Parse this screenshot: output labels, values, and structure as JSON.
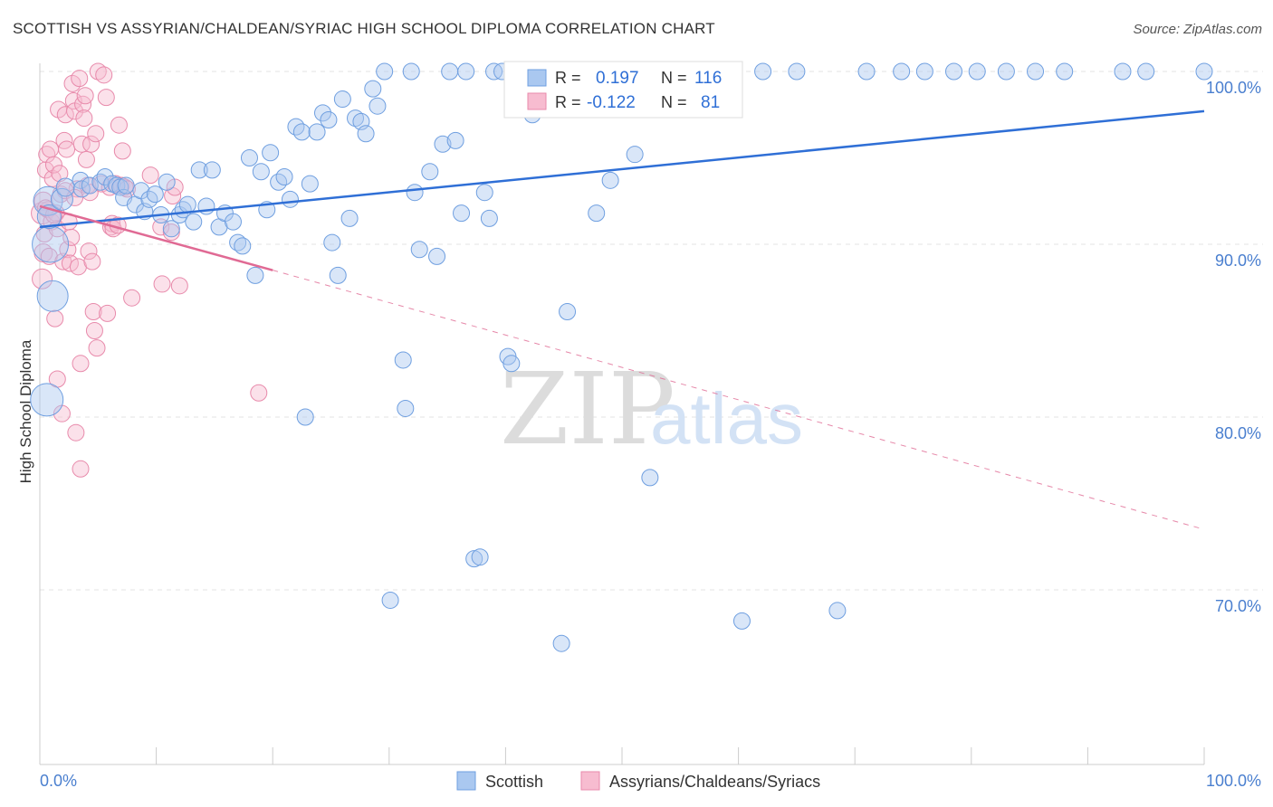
{
  "header": {
    "title": "SCOTTISH VS ASSYRIAN/CHALDEAN/SYRIAC HIGH SCHOOL DIPLOMA CORRELATION CHART",
    "source": "Source: ZipAtlas.com"
  },
  "watermark": {
    "zip": "ZIP",
    "atlas": "atlas"
  },
  "colors": {
    "blue_fill": "#aac8f0",
    "blue_stroke": "#6f9fe0",
    "blue_line": "#2f6fd6",
    "pink_fill": "#f7bcd0",
    "pink_stroke": "#e88aab",
    "pink_line": "#e06a94",
    "tick_label": "#4a7fcf",
    "grid": "#e3e3e3"
  },
  "legend_box": {
    "rows": [
      {
        "r_label": "R =",
        "r_value": "0.197",
        "n_label": "N =",
        "n_value": "116"
      },
      {
        "r_label": "R =",
        "r_value": "-0.122",
        "n_label": "N =",
        "n_value": "81"
      }
    ]
  },
  "bottom_legend": [
    "Scottish",
    "Assyrians/Chaldeans/Syriacs"
  ],
  "chart_data": {
    "type": "scatter",
    "title": "SCOTTISH VS ASSYRIAN/CHALDEAN/SYRIAC HIGH SCHOOL DIPLOMA CORRELATION CHART",
    "xlabel": "",
    "ylabel": "High School Diploma",
    "xlim": [
      0,
      100
    ],
    "ylim": [
      60,
      101.5
    ],
    "x_tick_labels": [
      "0.0%",
      "100.0%"
    ],
    "y_ticks": [
      70,
      80,
      90,
      100
    ],
    "y_tick_labels": [
      "70.0%",
      "80.0%",
      "90.0%",
      "100.0%"
    ],
    "grid": true,
    "legend_position": "top-center",
    "series": [
      {
        "name": "Scottish",
        "R": 0.197,
        "N": 116,
        "trend": {
          "x": [
            0,
            100
          ],
          "y": [
            91.0,
            97.7
          ],
          "style": "solid"
        },
        "points": [
          [
            0.7,
            92.5,
            16
          ],
          [
            0.9,
            90.0,
            20
          ],
          [
            1.1,
            87.0,
            17
          ],
          [
            0.6,
            81.0,
            18
          ],
          [
            0.8,
            91.6,
            13
          ],
          [
            1.9,
            92.6,
            12
          ],
          [
            2.2,
            93.3,
            10
          ],
          [
            3.5,
            93.7,
            9
          ],
          [
            3.6,
            93.2,
            9
          ],
          [
            4.3,
            93.4,
            9
          ],
          [
            5.2,
            93.6,
            9
          ],
          [
            5.6,
            93.9,
            9
          ],
          [
            6.2,
            93.5,
            9
          ],
          [
            6.6,
            93.4,
            9
          ],
          [
            6.9,
            93.3,
            9
          ],
          [
            7.2,
            92.7,
            9
          ],
          [
            7.4,
            93.4,
            9
          ],
          [
            8.2,
            92.3,
            9
          ],
          [
            8.7,
            93.1,
            9
          ],
          [
            9.0,
            91.9,
            9
          ],
          [
            9.4,
            92.6,
            9
          ],
          [
            9.9,
            92.9,
            9
          ],
          [
            10.4,
            91.7,
            9
          ],
          [
            10.9,
            93.6,
            9
          ],
          [
            11.3,
            90.9,
            9
          ],
          [
            12.0,
            91.7,
            9
          ],
          [
            12.3,
            92.0,
            9
          ],
          [
            12.7,
            92.3,
            9
          ],
          [
            13.2,
            91.3,
            9
          ],
          [
            13.7,
            94.3,
            9
          ],
          [
            14.3,
            92.2,
            9
          ],
          [
            14.8,
            94.3,
            9
          ],
          [
            15.4,
            91.0,
            9
          ],
          [
            15.9,
            91.8,
            9
          ],
          [
            16.6,
            91.3,
            9
          ],
          [
            17.0,
            90.1,
            9
          ],
          [
            17.4,
            89.9,
            9
          ],
          [
            18.0,
            95.0,
            9
          ],
          [
            18.5,
            88.2,
            9
          ],
          [
            19.0,
            94.2,
            9
          ],
          [
            19.5,
            92.0,
            9
          ],
          [
            19.8,
            95.3,
            9
          ],
          [
            20.5,
            93.6,
            9
          ],
          [
            21.0,
            93.9,
            9
          ],
          [
            21.5,
            92.6,
            9
          ],
          [
            22.0,
            96.8,
            9
          ],
          [
            22.5,
            96.5,
            9
          ],
          [
            22.8,
            80.0,
            9
          ],
          [
            23.2,
            93.5,
            9
          ],
          [
            23.8,
            96.5,
            9
          ],
          [
            24.3,
            97.6,
            9
          ],
          [
            24.8,
            97.2,
            9
          ],
          [
            25.1,
            90.1,
            9
          ],
          [
            25.6,
            88.2,
            9
          ],
          [
            26.0,
            98.4,
            9
          ],
          [
            26.6,
            91.5,
            9
          ],
          [
            27.1,
            97.3,
            9
          ],
          [
            27.6,
            97.1,
            9
          ],
          [
            28.0,
            96.4,
            9
          ],
          [
            28.6,
            99.0,
            9
          ],
          [
            29.0,
            98.0,
            9
          ],
          [
            29.6,
            100.0,
            9
          ],
          [
            30.1,
            69.4,
            9
          ],
          [
            31.2,
            83.3,
            9
          ],
          [
            31.9,
            100.0,
            9
          ],
          [
            31.4,
            80.5,
            9
          ],
          [
            32.2,
            93.0,
            9
          ],
          [
            32.6,
            89.7,
            9
          ],
          [
            33.5,
            94.2,
            9
          ],
          [
            34.1,
            89.3,
            9
          ],
          [
            34.6,
            95.8,
            9
          ],
          [
            35.2,
            100.0,
            9
          ],
          [
            35.7,
            96.0,
            9
          ],
          [
            36.2,
            91.8,
            9
          ],
          [
            36.6,
            100.0,
            9
          ],
          [
            37.3,
            71.8,
            9
          ],
          [
            37.8,
            71.9,
            9
          ],
          [
            38.2,
            93.0,
            9
          ],
          [
            38.6,
            91.5,
            9
          ],
          [
            39.0,
            100.0,
            9
          ],
          [
            39.7,
            100.0,
            9
          ],
          [
            40.2,
            83.5,
            9
          ],
          [
            40.5,
            83.1,
            9
          ],
          [
            41.2,
            100.0,
            9
          ],
          [
            42.3,
            97.5,
            9
          ],
          [
            42.8,
            100.0,
            9
          ],
          [
            43.5,
            100.0,
            9
          ],
          [
            44.2,
            98.6,
            9
          ],
          [
            44.8,
            66.9,
            9
          ],
          [
            45.3,
            86.1,
            9
          ],
          [
            46.0,
            100.0,
            9
          ],
          [
            46.5,
            100.0,
            9
          ],
          [
            47.8,
            91.8,
            9
          ],
          [
            48.4,
            97.8,
            9
          ],
          [
            49.0,
            93.7,
            9
          ],
          [
            50.5,
            100.0,
            9
          ],
          [
            51.1,
            95.2,
            9
          ],
          [
            52.4,
            76.5,
            9
          ],
          [
            53.5,
            100.0,
            9
          ],
          [
            55.0,
            100.0,
            9
          ],
          [
            58.0,
            100.0,
            9
          ],
          [
            60.3,
            68.2,
            9
          ],
          [
            62.1,
            100.0,
            9
          ],
          [
            65.0,
            100.0,
            9
          ],
          [
            68.5,
            68.8,
            9
          ],
          [
            71.0,
            100.0,
            9
          ],
          [
            74.0,
            100.0,
            9
          ],
          [
            76.0,
            100.0,
            9
          ],
          [
            78.5,
            100.0,
            9
          ],
          [
            80.5,
            100.0,
            9
          ],
          [
            83.0,
            100.0,
            9
          ],
          [
            85.5,
            100.0,
            9
          ],
          [
            88.0,
            100.0,
            9
          ],
          [
            93.0,
            100.0,
            9
          ],
          [
            95.0,
            100.0,
            9
          ],
          [
            100.0,
            100.0,
            9
          ]
        ]
      },
      {
        "name": "Assyrians/Chaldeans/Syriacs",
        "R": -0.122,
        "N": 81,
        "trend": {
          "x": [
            0,
            20
          ],
          "y": [
            92.2,
            88.5
          ],
          "style": "solid",
          "extension": {
            "x": [
              20,
              100
            ],
            "y": [
              88.5,
              73.5
            ],
            "style": "dashed"
          }
        },
        "points": [
          [
            0.2,
            91.8,
            12
          ],
          [
            0.2,
            88.0,
            11
          ],
          [
            0.3,
            89.5,
            10
          ],
          [
            0.3,
            92.5,
            10
          ],
          [
            0.4,
            90.6,
            9
          ],
          [
            0.5,
            94.3,
            9
          ],
          [
            0.6,
            95.2,
            9
          ],
          [
            0.7,
            92.0,
            9
          ],
          [
            0.8,
            89.3,
            9
          ],
          [
            0.9,
            95.5,
            9
          ],
          [
            1.0,
            91.3,
            9
          ],
          [
            1.1,
            93.8,
            9
          ],
          [
            1.2,
            94.6,
            9
          ],
          [
            1.3,
            85.7,
            9
          ],
          [
            1.4,
            91.8,
            9
          ],
          [
            1.5,
            90.9,
            9
          ],
          [
            1.5,
            82.2,
            9
          ],
          [
            1.6,
            97.8,
            9
          ],
          [
            1.7,
            94.1,
            9
          ],
          [
            1.8,
            92.9,
            9
          ],
          [
            1.9,
            80.2,
            9
          ],
          [
            2.0,
            89.0,
            9
          ],
          [
            2.1,
            96.0,
            9
          ],
          [
            2.2,
            97.5,
            9
          ],
          [
            2.3,
            95.5,
            9
          ],
          [
            2.4,
            89.7,
            9
          ],
          [
            2.5,
            91.3,
            9
          ],
          [
            2.6,
            88.9,
            9
          ],
          [
            2.7,
            90.4,
            9
          ],
          [
            2.8,
            99.3,
            9
          ],
          [
            2.9,
            98.3,
            9
          ],
          [
            3.0,
            97.7,
            9
          ],
          [
            3.1,
            79.1,
            9
          ],
          [
            3.2,
            93.2,
            9
          ],
          [
            3.3,
            88.7,
            9
          ],
          [
            3.4,
            99.6,
            9
          ],
          [
            3.5,
            83.1,
            9
          ],
          [
            3.5,
            77.0,
            9
          ],
          [
            3.6,
            95.8,
            9
          ],
          [
            3.7,
            98.1,
            9
          ],
          [
            3.8,
            97.3,
            9
          ],
          [
            3.9,
            98.6,
            9
          ],
          [
            4.0,
            94.9,
            9
          ],
          [
            4.1,
            93.4,
            9
          ],
          [
            4.2,
            89.6,
            9
          ],
          [
            4.3,
            93.0,
            9
          ],
          [
            4.4,
            95.8,
            9
          ],
          [
            4.5,
            89.0,
            9
          ],
          [
            4.6,
            86.1,
            9
          ],
          [
            4.7,
            85.0,
            9
          ],
          [
            4.8,
            96.4,
            9
          ],
          [
            4.9,
            84.0,
            9
          ],
          [
            5.0,
            100.0,
            9
          ],
          [
            5.3,
            93.5,
            9
          ],
          [
            5.5,
            99.8,
            9
          ],
          [
            5.7,
            98.5,
            9
          ],
          [
            5.8,
            86.0,
            9
          ],
          [
            6.0,
            93.3,
            9
          ],
          [
            6.1,
            91.0,
            9
          ],
          [
            6.2,
            91.2,
            9
          ],
          [
            6.3,
            90.9,
            9
          ],
          [
            6.5,
            93.5,
            9
          ],
          [
            6.7,
            91.1,
            9
          ],
          [
            6.8,
            96.9,
            9
          ],
          [
            7.0,
            93.4,
            9
          ],
          [
            7.1,
            95.4,
            9
          ],
          [
            7.3,
            93.3,
            9
          ],
          [
            7.5,
            93.2,
            9
          ],
          [
            7.9,
            86.9,
            9
          ],
          [
            9.5,
            94.0,
            9
          ],
          [
            10.4,
            91.0,
            9
          ],
          [
            10.5,
            87.7,
            9
          ],
          [
            11.3,
            90.7,
            9
          ],
          [
            11.4,
            92.8,
            9
          ],
          [
            11.6,
            93.3,
            9
          ],
          [
            12.0,
            87.6,
            9
          ],
          [
            18.8,
            81.4,
            9
          ],
          [
            0.5,
            92.1,
            9
          ],
          [
            1.2,
            91.7,
            9
          ],
          [
            2.2,
            93.1,
            9
          ],
          [
            3.0,
            92.7,
            9
          ]
        ]
      }
    ]
  }
}
